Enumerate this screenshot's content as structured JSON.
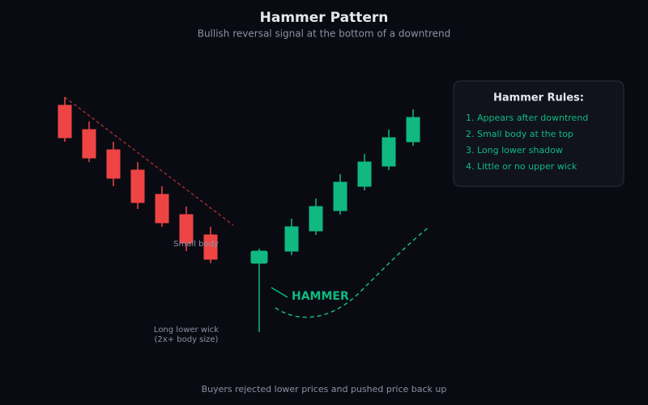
{
  "header": {
    "title": "Hammer Pattern",
    "subtitle": "Bullish reversal signal at the bottom of a downtrend"
  },
  "annotations": {
    "small_body": "Small body",
    "long_wick": "Long lower wick",
    "long_wick_note": "(2x+ body size)",
    "hammer": "HAMMER"
  },
  "rules": {
    "title": "Hammer Rules:",
    "items": [
      "1. Appears after downtrend",
      "2. Small body at the top",
      "3. Long lower shadow",
      "4. Little or no upper wick"
    ]
  },
  "footer": "Buyers rejected lower prices and pushed price back up"
}
